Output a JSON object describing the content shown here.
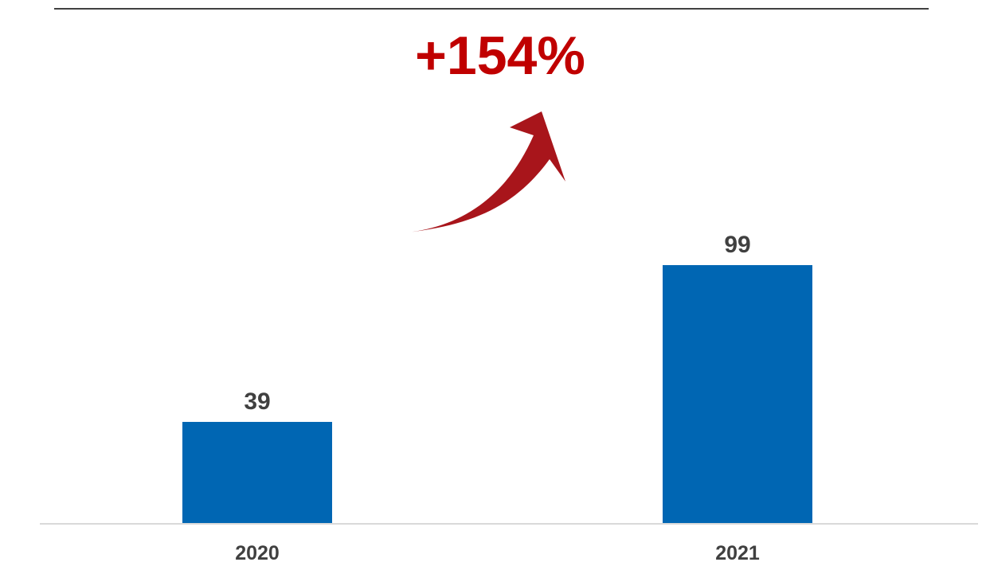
{
  "chart_data": {
    "type": "bar",
    "categories": [
      "2020",
      "2021"
    ],
    "values": [
      39,
      99
    ],
    "data_labels": [
      "39",
      "99"
    ],
    "ylim": [
      0,
      120
    ],
    "grid": false,
    "legend": "none",
    "annotation": {
      "text": "+154%",
      "shape": "curved-arrow-up-right"
    },
    "colors": {
      "bar": "#0066b3",
      "annotation": "#c00000",
      "arrow": "#a8151b",
      "axis": "#d9d9d9",
      "top_rule": "#000000",
      "label": "#404040"
    }
  }
}
